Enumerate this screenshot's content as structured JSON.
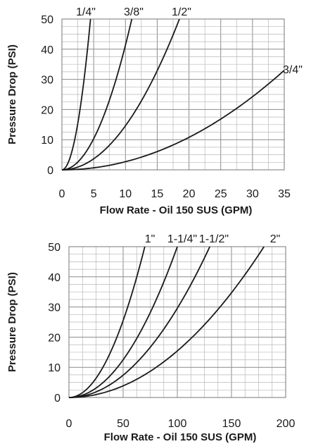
{
  "chart_data": [
    {
      "type": "line",
      "xlabel": "Flow Rate - Oil 150 SUS (GPM)",
      "ylabel": "Pressure Drop (PSI)",
      "xlim": [
        0,
        35
      ],
      "ylim": [
        0,
        50
      ],
      "xticks": [
        0,
        5,
        10,
        15,
        20,
        25,
        30,
        35
      ],
      "yticks": [
        0,
        10,
        20,
        30,
        40,
        50
      ],
      "grid": true,
      "series": [
        {
          "name": "1/4\"",
          "x": [
            0,
            1,
            2,
            3,
            4,
            4.5
          ],
          "y": [
            0,
            2.5,
            9.9,
            22.2,
            39.5,
            50
          ]
        },
        {
          "name": "3/8\"",
          "x": [
            0,
            2,
            4,
            6,
            8,
            10,
            11
          ],
          "y": [
            0,
            1.7,
            6.6,
            14.9,
            26.4,
            41.3,
            50
          ]
        },
        {
          "name": "1/2\"",
          "x": [
            0,
            3,
            6,
            9,
            12,
            15,
            18.5
          ],
          "y": [
            0,
            1.3,
            5.3,
            11.8,
            21.0,
            32.9,
            50
          ]
        },
        {
          "name": "3/4\"",
          "x": [
            0,
            5,
            10,
            15,
            20,
            25,
            30,
            35
          ],
          "y": [
            0,
            0.7,
            2.7,
            6.1,
            10.8,
            16.8,
            24.2,
            33
          ]
        }
      ]
    },
    {
      "type": "line",
      "xlabel": "Flow Rate - Oil 150 SUS (GPM)",
      "ylabel": "Pressure Drop (PSI)",
      "xlim": [
        0,
        200
      ],
      "ylim": [
        0,
        50
      ],
      "xticks": [
        0,
        50,
        100,
        150,
        200
      ],
      "yticks": [
        0,
        10,
        20,
        30,
        40,
        50
      ],
      "grid": true,
      "series": [
        {
          "name": "1\"",
          "x": [
            0,
            10,
            20,
            30,
            40,
            50,
            60,
            70
          ],
          "y": [
            0,
            1.0,
            4.1,
            9.2,
            16.3,
            25.5,
            36.7,
            50
          ]
        },
        {
          "name": "1-1/4\"",
          "x": [
            0,
            20,
            40,
            60,
            80,
            100
          ],
          "y": [
            0,
            2.0,
            8.0,
            18.0,
            32.0,
            50
          ]
        },
        {
          "name": "1-1/2\"",
          "x": [
            0,
            20,
            40,
            60,
            80,
            100,
            120,
            130
          ],
          "y": [
            0,
            1.2,
            4.7,
            10.7,
            18.9,
            29.6,
            42.6,
            50
          ]
        },
        {
          "name": "2\"",
          "x": [
            0,
            30,
            60,
            90,
            120,
            150,
            180
          ],
          "y": [
            0,
            1.4,
            5.6,
            12.5,
            22.2,
            34.7,
            50
          ]
        }
      ]
    }
  ]
}
